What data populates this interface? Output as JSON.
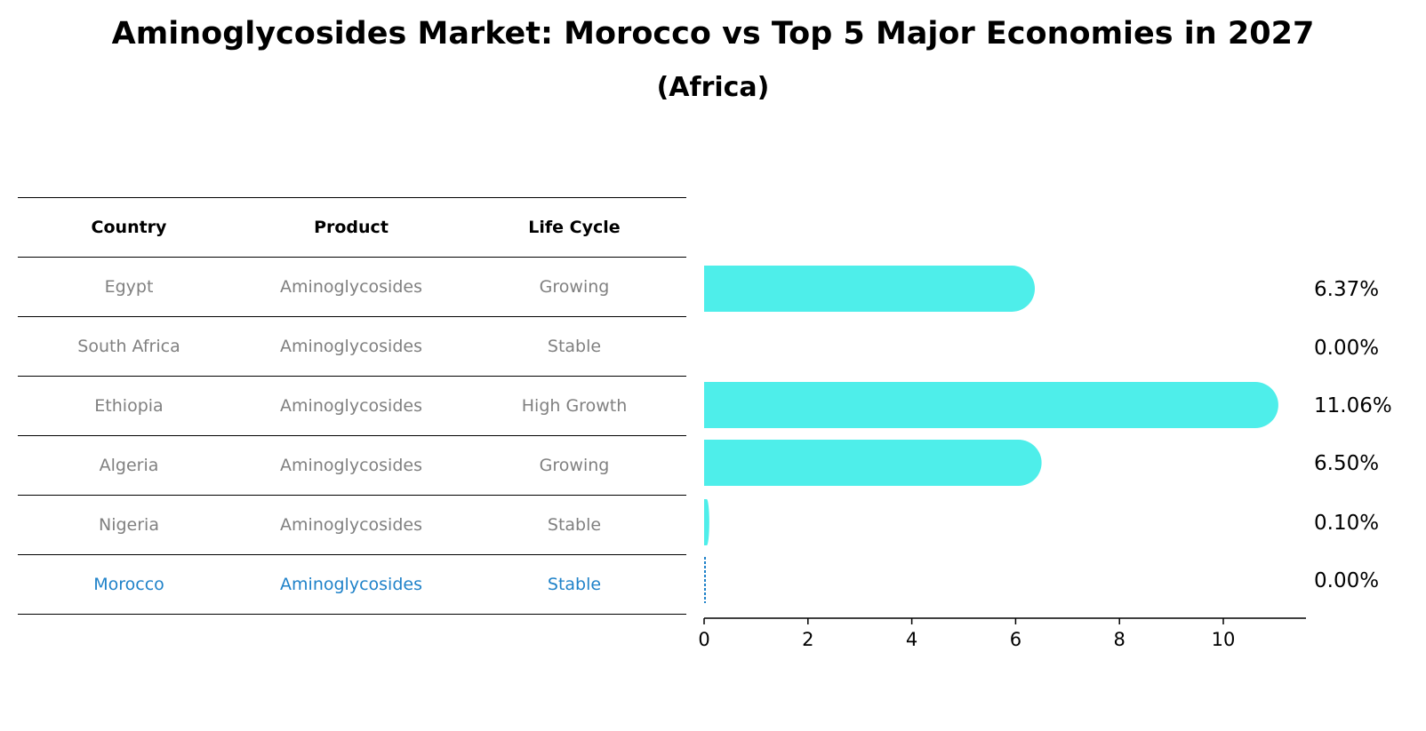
{
  "title": "Aminoglycosides Market: Morocco vs Top 5 Major Economies in 2027",
  "subtitle": "(Africa)",
  "table": {
    "headers": [
      "Country",
      "Product",
      "Life Cycle"
    ],
    "rows": [
      {
        "country": "Egypt",
        "product": "Aminoglycosides",
        "life_cycle": "Growing"
      },
      {
        "country": "South Africa",
        "product": "Aminoglycosides",
        "life_cycle": "Stable"
      },
      {
        "country": "Ethiopia",
        "product": "Aminoglycosides",
        "life_cycle": "High Growth"
      },
      {
        "country": "Algeria",
        "product": "Aminoglycosides",
        "life_cycle": "Growing"
      },
      {
        "country": "Nigeria",
        "product": "Aminoglycosides",
        "life_cycle": "Stable"
      },
      {
        "country": "Morocco",
        "product": "Aminoglycosides",
        "life_cycle": "Stable"
      }
    ]
  },
  "colors": {
    "bar": "#4eeeea",
    "highlight": "#1f82c9"
  },
  "chart_data": {
    "type": "bar",
    "orientation": "horizontal",
    "categories": [
      "Egypt",
      "South Africa",
      "Ethiopia",
      "Algeria",
      "Nigeria",
      "Morocco"
    ],
    "values": [
      6.37,
      0.0,
      11.06,
      6.5,
      0.1,
      0.0
    ],
    "value_labels": [
      "6.37%",
      "0.00%",
      "11.06%",
      "6.50%",
      "0.10%",
      "0.00%"
    ],
    "highlight": "Morocco",
    "xticks": [
      "0",
      "2",
      "4",
      "6",
      "8",
      "10"
    ],
    "xlim": [
      0,
      11.6
    ]
  }
}
